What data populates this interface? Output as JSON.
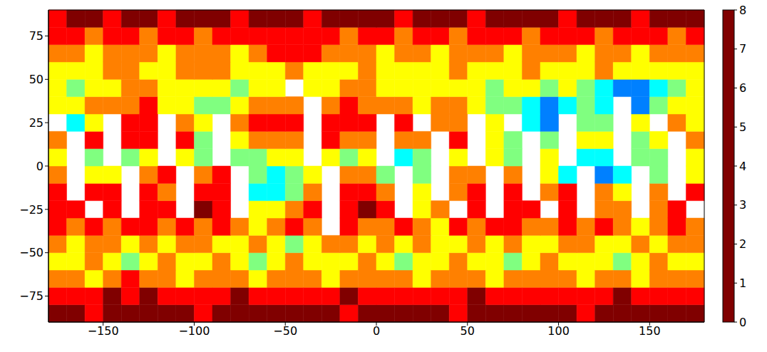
{
  "chart_data": {
    "type": "heatmap",
    "x_bins": [
      -180,
      -170,
      -160,
      -150,
      -140,
      -130,
      -120,
      -110,
      -100,
      -90,
      -80,
      -70,
      -60,
      -50,
      -40,
      -30,
      -20,
      -10,
      0,
      10,
      20,
      30,
      40,
      50,
      60,
      70,
      80,
      90,
      100,
      110,
      120,
      130,
      140,
      150,
      160,
      170,
      180
    ],
    "y_bins": [
      -90,
      -80,
      -70,
      -60,
      -50,
      -40,
      -30,
      -20,
      -10,
      0,
      10,
      20,
      30,
      40,
      50,
      60,
      70,
      80,
      90
    ],
    "cells": [
      [
        0,
        0,
        1,
        0,
        0,
        0,
        0,
        0,
        1,
        0,
        0,
        0,
        0,
        0,
        0,
        0,
        1,
        0,
        0,
        0,
        0,
        0,
        1,
        0,
        0,
        0,
        0,
        0,
        0,
        1,
        0,
        0,
        0,
        0,
        0,
        0
      ],
      [
        1,
        1,
        1,
        0,
        1,
        0,
        1,
        1,
        1,
        1,
        0,
        1,
        1,
        1,
        1,
        1,
        0,
        1,
        1,
        1,
        1,
        1,
        1,
        0,
        1,
        1,
        1,
        1,
        1,
        1,
        1,
        0,
        1,
        1,
        1,
        1
      ],
      [
        2,
        2,
        3,
        2,
        1,
        2,
        2,
        3,
        2,
        2,
        2,
        3,
        2,
        2,
        2,
        3,
        2,
        2,
        2,
        2,
        3,
        2,
        2,
        2,
        3,
        2,
        2,
        2,
        2,
        3,
        2,
        2,
        3,
        2,
        2,
        2
      ],
      [
        3,
        3,
        2,
        3,
        4,
        3,
        2,
        3,
        3,
        2,
        3,
        4,
        3,
        2,
        3,
        3,
        3,
        2,
        3,
        4,
        3,
        3,
        2,
        3,
        3,
        4,
        3,
        2,
        3,
        3,
        3,
        4,
        3,
        2,
        3,
        3
      ],
      [
        2,
        3,
        2,
        2,
        3,
        2,
        3,
        2,
        2,
        3,
        3,
        2,
        3,
        4,
        3,
        2,
        2,
        3,
        2,
        3,
        2,
        3,
        3,
        2,
        3,
        2,
        3,
        3,
        2,
        2,
        3,
        3,
        2,
        3,
        2,
        2
      ],
      [
        1,
        2,
        1,
        2,
        1,
        1,
        2,
        1,
        2,
        1,
        2,
        3,
        2,
        1,
        2,
        null,
        1,
        2,
        2,
        1,
        2,
        3,
        1,
        2,
        1,
        1,
        2,
        2,
        1,
        2,
        1,
        2,
        3,
        2,
        1,
        2
      ],
      [
        1,
        1,
        null,
        1,
        null,
        1,
        1,
        null,
        0,
        1,
        null,
        3,
        3,
        2,
        1,
        null,
        1,
        0,
        1,
        null,
        3,
        2,
        null,
        1,
        null,
        1,
        1,
        null,
        1,
        null,
        2,
        2,
        null,
        2,
        1,
        null
      ],
      [
        1,
        null,
        1,
        1,
        null,
        1,
        2,
        null,
        1,
        1,
        null,
        5,
        5,
        4,
        2,
        null,
        1,
        1,
        2,
        null,
        3,
        null,
        2,
        1,
        null,
        1,
        null,
        2,
        1,
        null,
        2,
        3,
        null,
        2,
        null,
        1
      ],
      [
        2,
        null,
        3,
        3,
        null,
        2,
        1,
        null,
        2,
        1,
        null,
        4,
        5,
        4,
        3,
        null,
        2,
        2,
        4,
        null,
        4,
        null,
        2,
        2,
        null,
        2,
        null,
        3,
        5,
        null,
        6,
        5,
        null,
        4,
        null,
        3
      ],
      [
        3,
        null,
        4,
        null,
        4,
        3,
        null,
        3,
        4,
        null,
        4,
        4,
        3,
        3,
        null,
        3,
        4,
        3,
        null,
        5,
        4,
        null,
        3,
        null,
        3,
        4,
        null,
        3,
        null,
        5,
        5,
        null,
        4,
        4,
        null,
        3
      ],
      [
        2,
        null,
        1,
        null,
        1,
        1,
        null,
        1,
        4,
        null,
        3,
        2,
        2,
        2,
        null,
        1,
        2,
        2,
        null,
        2,
        2,
        null,
        1,
        null,
        3,
        4,
        null,
        4,
        null,
        3,
        3,
        null,
        4,
        3,
        null,
        2
      ],
      [
        null,
        5,
        3,
        null,
        1,
        1,
        null,
        2,
        3,
        null,
        2,
        1,
        1,
        1,
        null,
        1,
        1,
        1,
        null,
        1,
        null,
        2,
        2,
        null,
        3,
        null,
        5,
        6,
        null,
        4,
        4,
        null,
        3,
        null,
        2,
        3
      ],
      [
        3,
        3,
        2,
        2,
        2,
        1,
        3,
        3,
        4,
        4,
        3,
        2,
        2,
        2,
        null,
        2,
        1,
        2,
        2,
        2,
        3,
        2,
        2,
        3,
        4,
        4,
        5,
        6,
        5,
        4,
        5,
        null,
        6,
        4,
        3,
        3
      ],
      [
        3,
        4,
        3,
        3,
        2,
        2,
        3,
        3,
        3,
        3,
        4,
        3,
        3,
        null,
        3,
        3,
        2,
        2,
        3,
        3,
        3,
        3,
        3,
        3,
        4,
        3,
        3,
        4,
        3,
        4,
        5,
        6,
        6,
        5,
        4,
        3
      ],
      [
        3,
        3,
        3,
        2,
        2,
        3,
        3,
        2,
        2,
        2,
        3,
        3,
        3,
        2,
        3,
        3,
        3,
        2,
        3,
        3,
        3,
        3,
        2,
        3,
        3,
        3,
        2,
        3,
        3,
        3,
        2,
        3,
        3,
        3,
        3,
        3
      ],
      [
        2,
        2,
        3,
        2,
        2,
        2,
        3,
        2,
        2,
        2,
        3,
        2,
        1,
        1,
        1,
        2,
        2,
        2,
        3,
        2,
        2,
        3,
        2,
        2,
        2,
        3,
        2,
        2,
        2,
        3,
        2,
        2,
        3,
        2,
        2,
        2
      ],
      [
        1,
        1,
        2,
        1,
        1,
        2,
        1,
        1,
        2,
        1,
        1,
        1,
        1,
        1,
        1,
        1,
        2,
        1,
        1,
        2,
        1,
        1,
        2,
        1,
        1,
        1,
        2,
        1,
        1,
        1,
        2,
        1,
        1,
        1,
        2,
        1
      ],
      [
        1,
        0,
        0,
        1,
        0,
        0,
        1,
        0,
        0,
        0,
        1,
        0,
        0,
        0,
        1,
        0,
        0,
        0,
        0,
        1,
        0,
        0,
        0,
        1,
        0,
        0,
        0,
        0,
        1,
        0,
        0,
        0,
        1,
        0,
        0,
        0
      ]
    ],
    "xlim": [
      -180,
      180
    ],
    "ylim": [
      -90,
      90
    ],
    "xticks": [
      {
        "value": -150,
        "label": "−150"
      },
      {
        "value": -100,
        "label": "−100"
      },
      {
        "value": -50,
        "label": "−50"
      },
      0,
      50,
      100,
      150
    ],
    "yticks": [
      {
        "value": -75,
        "label": "−75"
      },
      {
        "value": -50,
        "label": "−50"
      },
      {
        "value": -25,
        "label": "−25"
      },
      0,
      25,
      50,
      75
    ],
    "colorbar": {
      "range": [
        0,
        8
      ],
      "ticks": [
        0,
        1,
        2,
        3,
        4,
        5,
        6,
        7,
        8
      ]
    }
  }
}
